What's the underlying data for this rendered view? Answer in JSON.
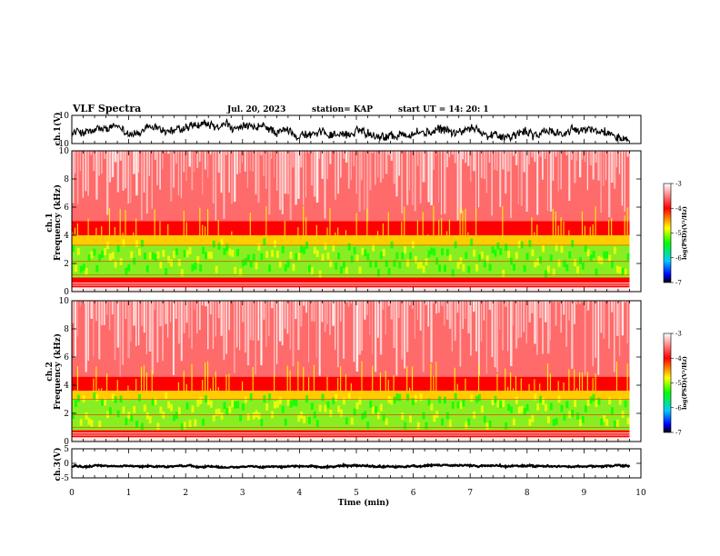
{
  "header": {
    "title": "VLF Spectra",
    "date": "Jul. 20, 2023",
    "station": "station= KAP",
    "start_ut": "start UT = 14: 20: 1"
  },
  "colors": {
    "spectrum_high": "#ff0000",
    "spectrum_mid": "#ffff00",
    "spectrum_low": "#00ff00",
    "colorbar_low": "#0000ff",
    "colorbar_min": "#000000",
    "waveform": "#000000"
  },
  "chart_data": [
    {
      "type": "line",
      "name": "ch1_waveform",
      "ylabel": "ch.1(V)",
      "ylim": [
        -10,
        10
      ],
      "yticks": [
        "10",
        "-10"
      ],
      "xlim": [
        0,
        10
      ],
      "data_end_min": 9.8,
      "description_values": {
        "mean": -2,
        "range": [
          -8,
          7
        ]
      }
    },
    {
      "type": "heatmap",
      "name": "ch1_spectrogram",
      "ylabel_line1": "ch.1",
      "ylabel_line2": "Frequency (kHz)",
      "ylim": [
        0,
        10
      ],
      "yticks": [
        "0",
        "2",
        "4",
        "6",
        "8",
        "10"
      ],
      "xlim": [
        0,
        10
      ],
      "data_end_min": 9.8,
      "bands_khz": {
        "green_low": 1.0,
        "green_high": 3.3,
        "yellow_top": 4.0,
        "red_solid_top": 5.0
      },
      "colorbar": {
        "ticks": [
          "-3",
          "-4",
          "-5",
          "-6",
          "-7"
        ],
        "range": [
          -7,
          -3
        ],
        "label": "log(PSD)(V²/Hz)"
      }
    },
    {
      "type": "heatmap",
      "name": "ch2_spectrogram",
      "ylabel_line1": "ch.2",
      "ylabel_line2": "Frequency (kHz)",
      "ylim": [
        0,
        10
      ],
      "yticks": [
        "0",
        "2",
        "4",
        "6",
        "8",
        "10"
      ],
      "xlim": [
        0,
        10
      ],
      "data_end_min": 9.8,
      "bands_khz": {
        "green_low": 0.8,
        "green_high": 3.0,
        "yellow_top": 3.6,
        "red_solid_top": 4.6
      },
      "colorbar": {
        "ticks": [
          "-3",
          "-4",
          "-5",
          "-6",
          "-7"
        ],
        "range": [
          -7,
          -3
        ],
        "label": "log(PSD)(V²/Hz)"
      }
    },
    {
      "type": "line",
      "name": "ch3_waveform",
      "ylabel": "ch.3(V)",
      "ylim": [
        -5,
        5
      ],
      "yticks": [
        "5",
        "0",
        "-5"
      ],
      "xlim": [
        0,
        10
      ],
      "data_end_min": 9.8,
      "description_values": {
        "mean": -1,
        "range": [
          -1.5,
          -0.5
        ]
      }
    }
  ],
  "xaxis": {
    "label": "Time (min)",
    "ticks": [
      "0",
      "1",
      "2",
      "3",
      "4",
      "5",
      "6",
      "7",
      "8",
      "9",
      "10"
    ]
  }
}
